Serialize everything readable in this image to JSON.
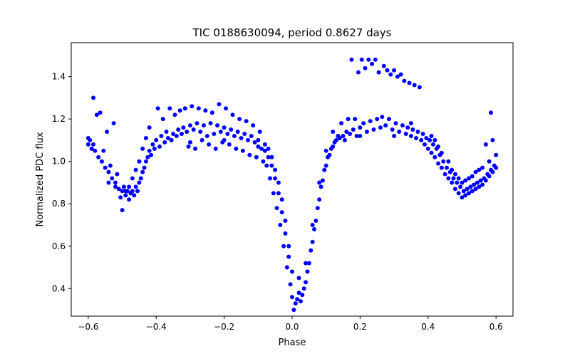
{
  "chart_data": {
    "type": "scatter",
    "title": "TIC 0188630094, period 0.8627 days",
    "xlabel": "Phase",
    "ylabel": "Normalized PDC flux",
    "xlim": [
      -0.65,
      0.65
    ],
    "ylim": [
      0.27,
      1.56
    ],
    "xticks": [
      -0.6,
      -0.4,
      -0.2,
      0.0,
      0.2,
      0.4,
      0.6
    ],
    "xtick_labels": [
      "−0.6",
      "−0.4",
      "−0.2",
      "0.0",
      "0.2",
      "0.4",
      "0.6"
    ],
    "yticks": [
      0.4,
      0.6,
      0.8,
      1.0,
      1.2,
      1.4
    ],
    "ytick_labels": [
      "0.4",
      "0.6",
      "0.8",
      "1.0",
      "1.2",
      "1.4"
    ],
    "grid": false,
    "marker_color": "#0000ff",
    "series": [
      {
        "name": "",
        "points": [
          [
            -0.6,
            1.08
          ],
          [
            -0.6,
            1.11
          ],
          [
            -0.595,
            1.1
          ],
          [
            -0.59,
            1.06
          ],
          [
            -0.585,
            1.3
          ],
          [
            -0.585,
            1.08
          ],
          [
            -0.58,
            1.05
          ],
          [
            -0.575,
            1.22
          ],
          [
            -0.57,
            1.02
          ],
          [
            -0.565,
            1.23
          ],
          [
            -0.56,
            1.0
          ],
          [
            -0.555,
            1.05
          ],
          [
            -0.55,
            0.97
          ],
          [
            -0.545,
            1.14
          ],
          [
            -0.54,
            0.95
          ],
          [
            -0.535,
            0.98
          ],
          [
            -0.53,
            0.92
          ],
          [
            -0.525,
            1.18
          ],
          [
            -0.52,
            0.9
          ],
          [
            -0.515,
            0.94
          ],
          [
            -0.51,
            0.87
          ],
          [
            -0.505,
            0.83
          ],
          [
            -0.5,
            0.86
          ],
          [
            -0.5,
            0.77
          ],
          [
            -0.495,
            0.88
          ],
          [
            -0.49,
            0.84
          ],
          [
            -0.485,
            0.86
          ],
          [
            -0.48,
            0.82
          ],
          [
            -0.475,
            0.85
          ],
          [
            -0.47,
            0.86
          ],
          [
            -0.465,
            0.84
          ],
          [
            -0.46,
            0.88
          ],
          [
            -0.455,
            0.86
          ],
          [
            -0.45,
            0.9
          ],
          [
            -0.445,
            0.92
          ],
          [
            -0.44,
            0.95
          ],
          [
            -0.435,
            0.97
          ],
          [
            -0.43,
            1.0
          ],
          [
            -0.425,
            1.02
          ],
          [
            -0.42,
            1.05
          ],
          [
            -0.415,
            1.03
          ],
          [
            -0.41,
            1.08
          ],
          [
            -0.405,
            1.06
          ],
          [
            -0.4,
            1.1
          ],
          [
            -0.395,
            1.25
          ],
          [
            -0.39,
            1.07
          ],
          [
            -0.385,
            1.12
          ],
          [
            -0.38,
            1.2
          ],
          [
            -0.375,
            1.09
          ],
          [
            -0.37,
            1.14
          ],
          [
            -0.365,
            1.11
          ],
          [
            -0.36,
            1.25
          ],
          [
            -0.355,
            1.1
          ],
          [
            -0.35,
            1.13
          ],
          [
            -0.345,
            1.22
          ],
          [
            -0.34,
            1.12
          ],
          [
            -0.335,
            1.15
          ],
          [
            -0.33,
            1.24
          ],
          [
            -0.325,
            1.13
          ],
          [
            -0.32,
            1.16
          ],
          [
            -0.315,
            1.25
          ],
          [
            -0.31,
            1.14
          ],
          [
            -0.305,
            1.07
          ],
          [
            -0.3,
            1.17
          ],
          [
            -0.295,
            1.26
          ],
          [
            -0.29,
            1.15
          ],
          [
            -0.285,
            1.06
          ],
          [
            -0.28,
            1.18
          ],
          [
            -0.275,
            1.25
          ],
          [
            -0.27,
            1.14
          ],
          [
            -0.265,
            1.1
          ],
          [
            -0.26,
            1.17
          ],
          [
            -0.255,
            1.24
          ],
          [
            -0.25,
            1.12
          ],
          [
            -0.245,
            1.08
          ],
          [
            -0.24,
            1.18
          ],
          [
            -0.235,
            1.23
          ],
          [
            -0.23,
            1.13
          ],
          [
            -0.225,
            1.06
          ],
          [
            -0.22,
            1.17
          ],
          [
            -0.215,
            1.27
          ],
          [
            -0.21,
            1.14
          ],
          [
            -0.205,
            1.09
          ],
          [
            -0.2,
            1.16
          ],
          [
            -0.195,
            1.25
          ],
          [
            -0.19,
            1.13
          ],
          [
            -0.185,
            1.08
          ],
          [
            -0.18,
            1.15
          ],
          [
            -0.175,
            1.22
          ],
          [
            -0.17,
            1.12
          ],
          [
            -0.165,
            1.06
          ],
          [
            -0.16,
            1.14
          ],
          [
            -0.155,
            1.2
          ],
          [
            -0.15,
            1.11
          ],
          [
            -0.145,
            1.05
          ],
          [
            -0.14,
            1.13
          ],
          [
            -0.135,
            1.19
          ],
          [
            -0.13,
            1.1
          ],
          [
            -0.125,
            1.03
          ],
          [
            -0.12,
            1.12
          ],
          [
            -0.115,
            1.17
          ],
          [
            -0.11,
            1.09
          ],
          [
            -0.105,
            1.02
          ],
          [
            -0.1,
            1.1
          ],
          [
            -0.095,
            1.14
          ],
          [
            -0.09,
            1.06
          ],
          [
            -0.085,
            1.0
          ],
          [
            -0.08,
            1.05
          ],
          [
            -0.075,
            0.98
          ],
          [
            -0.07,
            1.02
          ],
          [
            -0.065,
            0.92
          ],
          [
            -0.06,
            0.98
          ],
          [
            -0.055,
            0.85
          ],
          [
            -0.05,
            0.92
          ],
          [
            -0.045,
            0.78
          ],
          [
            -0.04,
            0.85
          ],
          [
            -0.035,
            0.7
          ],
          [
            -0.03,
            0.76
          ],
          [
            -0.025,
            0.6
          ],
          [
            -0.02,
            0.66
          ],
          [
            -0.015,
            0.5
          ],
          [
            -0.01,
            0.55
          ],
          [
            -0.005,
            0.42
          ],
          [
            0.0,
            0.36
          ],
          [
            0.005,
            0.3
          ],
          [
            0.01,
            0.33
          ],
          [
            0.015,
            0.35
          ],
          [
            0.02,
            0.38
          ],
          [
            0.025,
            0.34
          ],
          [
            0.03,
            0.37
          ],
          [
            0.035,
            0.4
          ],
          [
            0.04,
            0.43
          ],
          [
            0.045,
            0.48
          ],
          [
            0.05,
            0.52
          ],
          [
            0.055,
            0.58
          ],
          [
            0.06,
            0.62
          ],
          [
            0.065,
            0.68
          ],
          [
            0.07,
            0.72
          ],
          [
            0.075,
            0.78
          ],
          [
            0.08,
            0.82
          ],
          [
            0.085,
            0.88
          ],
          [
            0.09,
            0.91
          ],
          [
            0.095,
            0.96
          ],
          [
            0.1,
            0.98
          ],
          [
            0.105,
            1.02
          ],
          [
            0.11,
            1.03
          ],
          [
            0.115,
            1.06
          ],
          [
            0.12,
            1.07
          ],
          [
            0.125,
            1.09
          ],
          [
            0.13,
            1.1
          ],
          [
            0.135,
            1.12
          ],
          [
            0.14,
            1.11
          ],
          [
            0.145,
            1.18
          ],
          [
            0.15,
            1.12
          ],
          [
            0.155,
            1.1
          ],
          [
            0.16,
            1.14
          ],
          [
            0.165,
            1.2
          ],
          [
            0.17,
            1.13
          ],
          [
            0.175,
            1.48
          ],
          [
            0.18,
            1.15
          ],
          [
            0.185,
            1.2
          ],
          [
            0.19,
            1.12
          ],
          [
            0.195,
            1.42
          ],
          [
            0.2,
            1.16
          ],
          [
            0.205,
            1.48
          ],
          [
            0.21,
            1.18
          ],
          [
            0.215,
            1.44
          ],
          [
            0.22,
            1.14
          ],
          [
            0.225,
            1.48
          ],
          [
            0.23,
            1.19
          ],
          [
            0.235,
            1.46
          ],
          [
            0.24,
            1.15
          ],
          [
            0.245,
            1.48
          ],
          [
            0.25,
            1.2
          ],
          [
            0.255,
            1.42
          ],
          [
            0.26,
            1.16
          ],
          [
            0.265,
            1.21
          ],
          [
            0.27,
            1.45
          ],
          [
            0.275,
            1.17
          ],
          [
            0.28,
            1.43
          ],
          [
            0.285,
            1.2
          ],
          [
            0.29,
            1.41
          ],
          [
            0.295,
            1.15
          ],
          [
            0.3,
            1.43
          ],
          [
            0.305,
            1.18
          ],
          [
            0.31,
            1.4
          ],
          [
            0.315,
            1.14
          ],
          [
            0.32,
            1.41
          ],
          [
            0.325,
            1.17
          ],
          [
            0.33,
            1.38
          ],
          [
            0.335,
            1.13
          ],
          [
            0.34,
            1.16
          ],
          [
            0.345,
            1.37
          ],
          [
            0.35,
            1.12
          ],
          [
            0.355,
            1.15
          ],
          [
            0.36,
            1.36
          ],
          [
            0.365,
            1.11
          ],
          [
            0.37,
            1.14
          ],
          [
            0.375,
            1.35
          ],
          [
            0.38,
            1.1
          ],
          [
            0.385,
            1.13
          ],
          [
            0.39,
            1.08
          ],
          [
            0.395,
            1.11
          ],
          [
            0.4,
            1.06
          ],
          [
            0.405,
            1.1
          ],
          [
            0.41,
            1.04
          ],
          [
            0.415,
            1.08
          ],
          [
            0.42,
            1.02
          ],
          [
            0.425,
            1.06
          ],
          [
            0.43,
            0.99
          ],
          [
            0.435,
            1.03
          ],
          [
            0.44,
            0.97
          ],
          [
            0.445,
            1.0
          ],
          [
            0.45,
            0.94
          ],
          [
            0.455,
            0.97
          ],
          [
            0.46,
            0.92
          ],
          [
            0.465,
            0.95
          ],
          [
            0.47,
            0.9
          ],
          [
            0.475,
            0.92
          ],
          [
            0.48,
            0.87
          ],
          [
            0.485,
            0.9
          ],
          [
            0.49,
            0.85
          ],
          [
            0.495,
            0.88
          ],
          [
            0.5,
            0.83
          ],
          [
            0.505,
            0.86
          ],
          [
            0.51,
            0.84
          ],
          [
            0.515,
            0.87
          ],
          [
            0.52,
            0.85
          ],
          [
            0.525,
            0.88
          ],
          [
            0.53,
            0.86
          ],
          [
            0.535,
            0.89
          ],
          [
            0.54,
            0.87
          ],
          [
            0.545,
            0.9
          ],
          [
            0.55,
            0.88
          ],
          [
            0.555,
            0.91
          ],
          [
            0.56,
            0.89
          ],
          [
            0.565,
            0.92
          ],
          [
            0.57,
            0.91
          ],
          [
            0.575,
            0.94
          ],
          [
            0.58,
            0.93
          ],
          [
            0.585,
            0.96
          ],
          [
            0.59,
            0.95
          ],
          [
            0.595,
            0.98
          ],
          [
            0.6,
            0.97
          ],
          [
            0.6,
            1.03
          ],
          [
            -0.42,
            1.16
          ],
          [
            -0.43,
            1.11
          ],
          [
            -0.44,
            1.06
          ],
          [
            -0.45,
            1.0
          ],
          [
            -0.46,
            0.96
          ],
          [
            -0.47,
            0.92
          ],
          [
            -0.48,
            0.88
          ],
          [
            -0.49,
            0.86
          ],
          [
            -0.52,
            0.88
          ],
          [
            -0.54,
            0.9
          ],
          [
            0.48,
            0.94
          ],
          [
            0.49,
            0.92
          ],
          [
            0.5,
            0.9
          ],
          [
            0.52,
            0.92
          ],
          [
            0.54,
            0.95
          ],
          [
            0.56,
            0.97
          ],
          [
            0.58,
            1.0
          ],
          [
            0.59,
            1.1
          ],
          [
            0.585,
            1.23
          ],
          [
            0.57,
            1.08
          ],
          [
            0.55,
            0.96
          ],
          [
            0.53,
            0.93
          ],
          [
            0.51,
            0.91
          ],
          [
            0.47,
            0.96
          ],
          [
            0.46,
            1.0
          ],
          [
            0.44,
            1.04
          ],
          [
            0.43,
            1.07
          ],
          [
            0.42,
            1.1
          ],
          [
            0.41,
            1.12
          ],
          [
            0.35,
            1.18
          ],
          [
            -0.08,
            1.08
          ],
          [
            -0.07,
            1.06
          ],
          [
            -0.06,
            1.02
          ],
          [
            -0.05,
            0.96
          ],
          [
            -0.04,
            0.9
          ],
          [
            -0.03,
            0.82
          ],
          [
            -0.02,
            0.72
          ],
          [
            -0.01,
            0.6
          ],
          [
            0.0,
            0.48
          ],
          [
            0.02,
            0.45
          ],
          [
            0.04,
            0.52
          ],
          [
            0.06,
            0.7
          ],
          [
            0.08,
            0.9
          ],
          [
            0.1,
            1.05
          ],
          [
            0.12,
            1.14
          ],
          [
            -0.3,
            1.09
          ],
          [
            -0.2,
            1.1
          ],
          [
            -0.1,
            1.07
          ],
          [
            0.2,
            1.12
          ],
          [
            0.3,
            1.12
          ]
        ]
      }
    ]
  }
}
